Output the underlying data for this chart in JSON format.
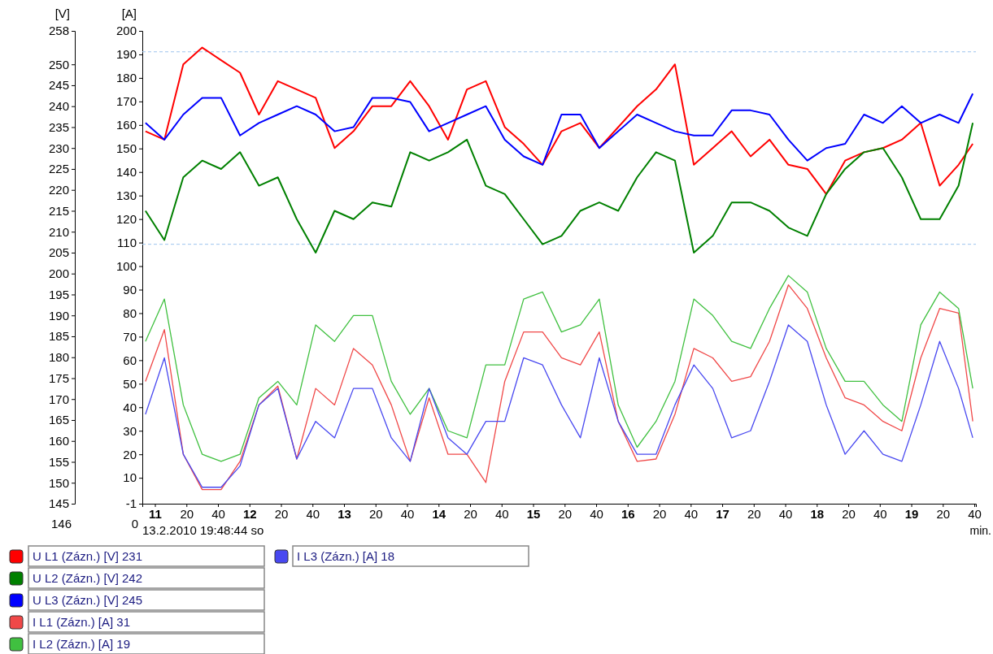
{
  "chart_data": {
    "type": "line",
    "ylabel": "[V]",
    "y2label": "[A]",
    "xlabel": "min.",
    "x": [
      "2010-02-13T19:10:54",
      "2010-02-13T19:11:06",
      "2010-02-13T19:11:18",
      "2010-02-13T19:11:30",
      "2010-02-13T19:11:42",
      "2010-02-13T19:11:54",
      "2010-02-13T19:12:06",
      "2010-02-13T19:12:18",
      "2010-02-13T19:12:30",
      "2010-02-13T19:12:42",
      "2010-02-13T19:12:54",
      "2010-02-13T19:13:06",
      "2010-02-13T19:13:18",
      "2010-02-13T19:13:30",
      "2010-02-13T19:13:42",
      "2010-02-13T19:13:54",
      "2010-02-13T19:14:06",
      "2010-02-13T19:14:18",
      "2010-02-13T19:14:30",
      "2010-02-13T19:14:42",
      "2010-02-13T19:14:54",
      "2010-02-13T19:15:06",
      "2010-02-13T19:15:18",
      "2010-02-13T19:15:30",
      "2010-02-13T19:15:42",
      "2010-02-13T19:15:54",
      "2010-02-13T19:16:06",
      "2010-02-13T19:16:18",
      "2010-02-13T19:16:30",
      "2010-02-13T19:16:42",
      "2010-02-13T19:16:54",
      "2010-02-13T19:17:06",
      "2010-02-13T19:17:18",
      "2010-02-13T19:17:30",
      "2010-02-13T19:17:42",
      "2010-02-13T19:17:54",
      "2010-02-13T19:18:06",
      "2010-02-13T19:18:18",
      "2010-02-13T19:18:30",
      "2010-02-13T19:18:42",
      "2010-02-13T19:18:54",
      "2010-02-13T19:19:06",
      "2010-02-13T19:19:18",
      "2010-02-13T19:19:30",
      "2010-02-13T19:19:39"
    ],
    "xlim": [
      "2010-02-13T19:10:52",
      "2010-02-13T19:19:41"
    ],
    "xticks": [
      {
        "value": "2010-02-13T19:11:00",
        "label": "11"
      },
      {
        "value": "2010-02-13T19:11:20",
        "label": "20"
      },
      {
        "value": "2010-02-13T19:11:40",
        "label": "40"
      },
      {
        "value": "2010-02-13T19:12:00",
        "label": "12"
      },
      {
        "value": "2010-02-13T19:12:20",
        "label": "20"
      },
      {
        "value": "2010-02-13T19:12:40",
        "label": "40"
      },
      {
        "value": "2010-02-13T19:13:00",
        "label": "13"
      },
      {
        "value": "2010-02-13T19:13:20",
        "label": "20"
      },
      {
        "value": "2010-02-13T19:13:40",
        "label": "40"
      },
      {
        "value": "2010-02-13T19:14:00",
        "label": "14"
      },
      {
        "value": "2010-02-13T19:14:20",
        "label": "20"
      },
      {
        "value": "2010-02-13T19:14:40",
        "label": "40"
      },
      {
        "value": "2010-02-13T19:15:00",
        "label": "15"
      },
      {
        "value": "2010-02-13T19:15:20",
        "label": "20"
      },
      {
        "value": "2010-02-13T19:15:40",
        "label": "40"
      },
      {
        "value": "2010-02-13T19:16:00",
        "label": "16"
      },
      {
        "value": "2010-02-13T19:16:20",
        "label": "20"
      },
      {
        "value": "2010-02-13T19:16:40",
        "label": "40"
      },
      {
        "value": "2010-02-13T19:17:00",
        "label": "17"
      },
      {
        "value": "2010-02-13T19:17:20",
        "label": "20"
      },
      {
        "value": "2010-02-13T19:17:40",
        "label": "40"
      },
      {
        "value": "2010-02-13T19:18:00",
        "label": "18"
      },
      {
        "value": "2010-02-13T19:18:20",
        "label": "20"
      },
      {
        "value": "2010-02-13T19:18:40",
        "label": "40"
      },
      {
        "value": "2010-02-13T19:19:00",
        "label": "19"
      },
      {
        "value": "2010-02-13T19:19:20",
        "label": "20"
      },
      {
        "value": "2010-02-13T19:19:40",
        "label": "40"
      }
    ],
    "ylim": [
      145,
      258
    ],
    "yticks": [
      145,
      150,
      155,
      160,
      165,
      170,
      175,
      180,
      185,
      190,
      195,
      200,
      205,
      210,
      215,
      220,
      225,
      230,
      235,
      240,
      245,
      250,
      258
    ],
    "y2lim": [
      -1,
      200
    ],
    "y2ticks": [
      -1,
      10,
      20,
      30,
      40,
      50,
      60,
      70,
      80,
      90,
      100,
      110,
      120,
      130,
      140,
      150,
      160,
      170,
      180,
      190,
      200
    ],
    "ref_lines": [
      {
        "axis": "y",
        "value": 253,
        "color": "#9cc3ee",
        "line_style": "dashed"
      },
      {
        "axis": "y",
        "value": 207,
        "color": "#9cc3ee",
        "line_style": "dashed"
      }
    ],
    "grid": false,
    "legend": "bottom",
    "marker": "none",
    "line_style": "solid",
    "annotations": [
      "13.2.2010 19:48:44 so",
      "146",
      "0"
    ],
    "series": [
      {
        "name": "U L1 (Zázn.) [V] 231",
        "color": "#ff0000",
        "axis": "y",
        "values": [
          234,
          232,
          250,
          254,
          251,
          248,
          238,
          246,
          244,
          242,
          230,
          234,
          240,
          240,
          246,
          240,
          232,
          244,
          246,
          235,
          231,
          226,
          234,
          236,
          230,
          235,
          240,
          244,
          250,
          226,
          230,
          234,
          228,
          232,
          226,
          225,
          219,
          227,
          229,
          230,
          232,
          236,
          221,
          226,
          231
        ]
      },
      {
        "name": "U L2 (Zázn.) [V] 242",
        "color": "#008000",
        "axis": "y",
        "values": [
          215,
          208,
          223,
          227,
          225,
          229,
          221,
          223,
          213,
          205,
          215,
          213,
          217,
          216,
          229,
          227,
          229,
          232,
          221,
          219,
          213,
          207,
          209,
          215,
          217,
          215,
          223,
          229,
          227,
          205,
          209,
          217,
          217,
          215,
          211,
          209,
          219,
          225,
          229,
          230,
          223,
          213,
          213,
          221,
          236
        ]
      },
      {
        "name": "U L3 (Zázn.) [V] 245",
        "color": "#0000ff",
        "axis": "y",
        "values": [
          236,
          232,
          238,
          242,
          242,
          233,
          236,
          238,
          240,
          238,
          234,
          235,
          242,
          242,
          241,
          234,
          236,
          238,
          240,
          232,
          228,
          226,
          238,
          238,
          230,
          234,
          238,
          236,
          234,
          233,
          233,
          239,
          239,
          238,
          232,
          227,
          230,
          231,
          238,
          236,
          240,
          236,
          238,
          236,
          243
        ]
      },
      {
        "name": "I L1 (Zázn.) [A] 31",
        "color": "#f04848",
        "axis": "y2",
        "values": [
          51,
          73,
          20,
          5,
          5,
          17,
          41,
          49,
          18,
          48,
          41,
          65,
          58,
          41,
          17,
          44,
          20,
          20,
          8,
          51,
          72,
          72,
          61,
          58,
          72,
          34,
          17,
          18,
          37,
          65,
          61,
          51,
          53,
          68,
          92,
          82,
          61,
          44,
          41,
          34,
          30,
          61,
          82,
          80,
          34
        ]
      },
      {
        "name": "I L2 (Zázn.) [A] 19",
        "color": "#40c040",
        "axis": "y2",
        "values": [
          68,
          86,
          41,
          20,
          17,
          20,
          44,
          51,
          41,
          75,
          68,
          79,
          79,
          51,
          37,
          48,
          30,
          27,
          58,
          58,
          86,
          89,
          72,
          75,
          86,
          41,
          23,
          34,
          51,
          86,
          79,
          68,
          65,
          82,
          96,
          89,
          65,
          51,
          51,
          41,
          34,
          75,
          89,
          82,
          48
        ]
      },
      {
        "name": "I L3 (Zázn.) [A] 18",
        "color": "#4848f0",
        "axis": "y2",
        "values": [
          37,
          61,
          20,
          6,
          6,
          15,
          41,
          48,
          18,
          34,
          27,
          48,
          48,
          27,
          17,
          48,
          27,
          20,
          34,
          34,
          61,
          58,
          41,
          27,
          61,
          34,
          20,
          20,
          41,
          58,
          48,
          27,
          30,
          51,
          75,
          68,
          41,
          20,
          30,
          20,
          17,
          41,
          68,
          48,
          27
        ]
      }
    ]
  }
}
